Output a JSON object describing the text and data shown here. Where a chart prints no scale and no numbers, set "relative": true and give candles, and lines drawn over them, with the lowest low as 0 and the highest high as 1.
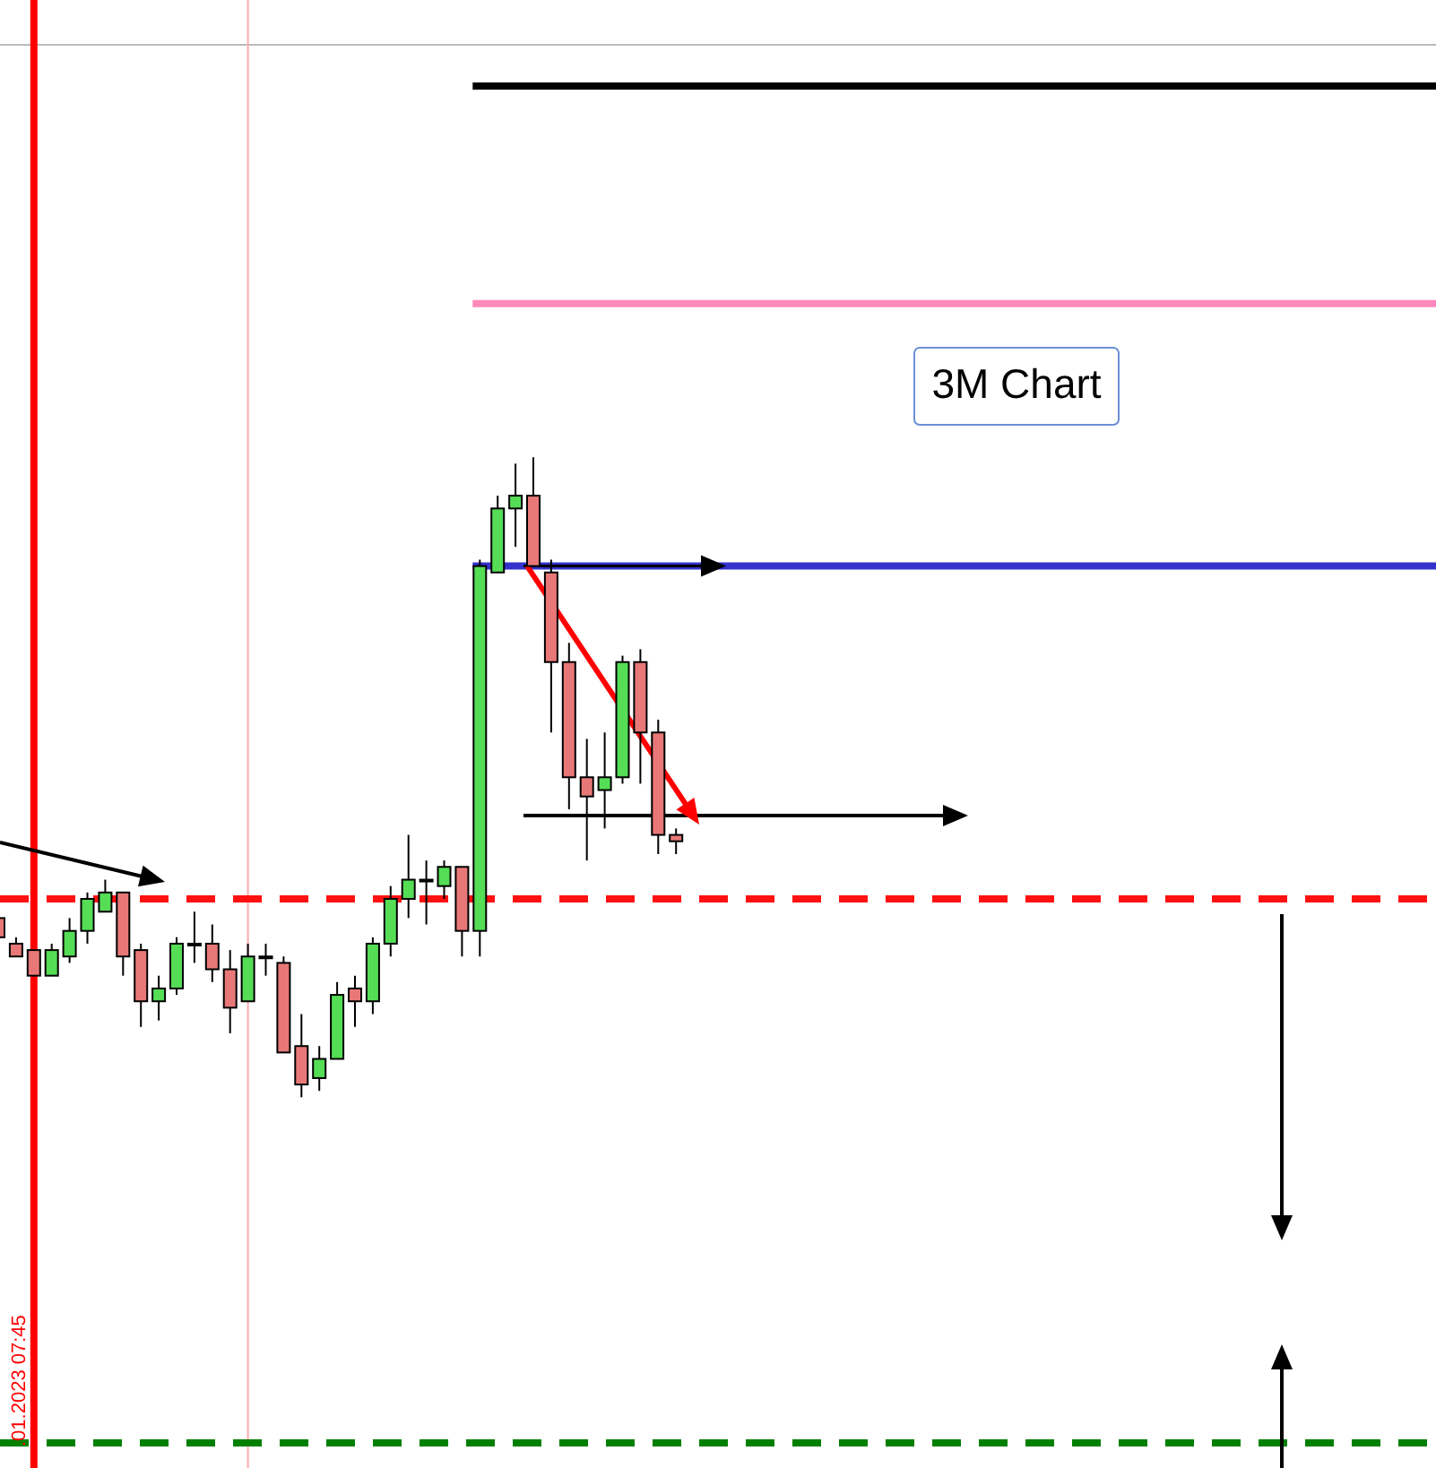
{
  "chart_data": {
    "type": "candlestick",
    "relative": true,
    "categories": [
      null,
      null,
      null,
      null,
      null,
      null,
      null,
      null,
      null,
      null,
      null,
      null,
      null,
      null,
      null,
      null,
      null,
      null,
      null,
      null,
      null,
      null,
      null,
      null,
      null,
      null,
      null,
      null,
      null,
      null,
      null,
      null,
      null,
      null,
      null,
      null,
      null,
      null,
      null
    ],
    "ohlc": [
      [
        0.28,
        0.29,
        0.25,
        0.25
      ],
      [
        0.24,
        0.25,
        0.22,
        0.22
      ],
      [
        0.23,
        0.23,
        0.19,
        0.19
      ],
      [
        0.19,
        0.24,
        0.19,
        0.23
      ],
      [
        0.22,
        0.28,
        0.21,
        0.26
      ],
      [
        0.26,
        0.32,
        0.24,
        0.31
      ],
      [
        0.29,
        0.34,
        0.29,
        0.32
      ],
      [
        0.32,
        0.32,
        0.19,
        0.22
      ],
      [
        0.23,
        0.24,
        0.11,
        0.15
      ],
      [
        0.15,
        0.19,
        0.12,
        0.17
      ],
      [
        0.17,
        0.25,
        0.16,
        0.24
      ],
      [
        0.24,
        0.29,
        0.21,
        0.24
      ],
      [
        0.24,
        0.27,
        0.18,
        0.2
      ],
      [
        0.2,
        0.23,
        0.1,
        0.14
      ],
      [
        0.15,
        0.24,
        0.15,
        0.22
      ],
      [
        0.22,
        0.24,
        0.19,
        0.22
      ],
      [
        0.21,
        0.22,
        0.07,
        0.07
      ],
      [
        0.08,
        0.13,
        0,
        0.02
      ],
      [
        0.03,
        0.08,
        0.01,
        0.06
      ],
      [
        0.06,
        0.18,
        0.06,
        0.16
      ],
      [
        0.17,
        0.19,
        0.11,
        0.15
      ],
      [
        0.15,
        0.25,
        0.13,
        0.24
      ],
      [
        0.24,
        0.33,
        0.22,
        0.31
      ],
      [
        0.31,
        0.41,
        0.28,
        0.34
      ],
      [
        0.34,
        0.37,
        0.27,
        0.34
      ],
      [
        0.33,
        0.37,
        0.31,
        0.36
      ],
      [
        0.36,
        0.36,
        0.22,
        0.26
      ],
      [
        0.26,
        0.84,
        0.22,
        0.83
      ],
      [
        0.82,
        0.94,
        0.82,
        0.92
      ],
      [
        0.92,
        0.99,
        0.86,
        0.94
      ],
      [
        0.94,
        1,
        0.83,
        0.83
      ],
      [
        0.82,
        0.84,
        0.57,
        0.68
      ],
      [
        0.68,
        0.71,
        0.45,
        0.5
      ],
      [
        0.5,
        0.56,
        0.37,
        0.47
      ],
      [
        0.48,
        0.57,
        0.42,
        0.5
      ],
      [
        0.5,
        0.69,
        0.49,
        0.68
      ],
      [
        0.68,
        0.7,
        0.49,
        0.57
      ],
      [
        0.57,
        0.59,
        0.38,
        0.41
      ],
      [
        0.41,
        0.42,
        0.38,
        0.4
      ]
    ],
    "colors": [
      "#e87878",
      "#e87878",
      "#e87878",
      "#55dd55",
      "#55dd55",
      "#55dd55",
      "#55dd55",
      "#e87878",
      "#e87878",
      "#55dd55",
      "#55dd55",
      "#e87878",
      "#e87878",
      "#e87878",
      "#55dd55",
      "#e87878",
      "#e87878",
      "#e87878",
      "#55dd55",
      "#55dd55",
      "#e87878",
      "#55dd55",
      "#55dd55",
      "#55dd55",
      "#e87878",
      "#55dd55",
      "#e87878",
      "#55dd55",
      "#55dd55",
      "#55dd55",
      "#e87878",
      "#e87878",
      "#e87878",
      "#e87878",
      "#55dd55",
      "#55dd55",
      "#e87878",
      "#e87878",
      "#e87878"
    ],
    "ref_lines": [
      {
        "axis": "y",
        "value": 1.58,
        "color": "#000000",
        "line_style": "solid"
      },
      {
        "axis": "y",
        "value": 1.24,
        "color": "#ff88bb",
        "line_style": "solid"
      },
      {
        "axis": "y",
        "value": 0.83,
        "color": "#3333cc",
        "line_style": "solid"
      },
      {
        "axis": "y",
        "value": 0.31,
        "color": "#ff1111",
        "line_style": "dashed"
      },
      {
        "axis": "y",
        "value": -0.54,
        "color": "#008000",
        "line_style": "dashed"
      }
    ],
    "annotations": [
      "3M Chart",
      ".01.2023 07:45"
    ]
  }
}
